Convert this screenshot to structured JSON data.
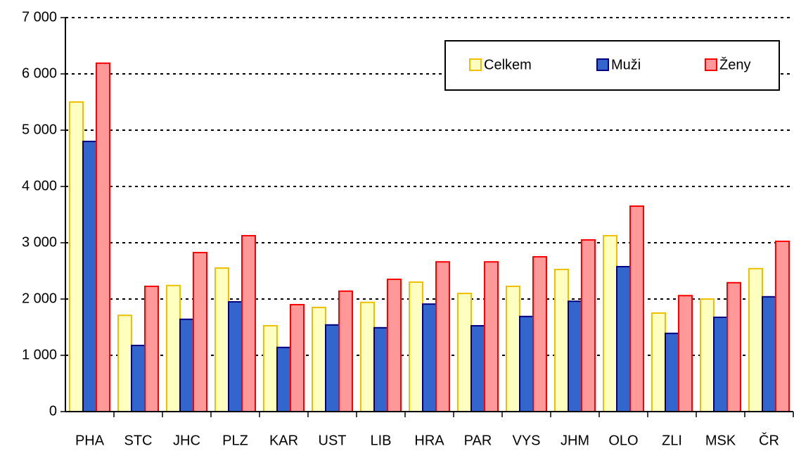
{
  "chart_data": {
    "type": "bar",
    "categories": [
      "PHA",
      "STC",
      "JHC",
      "PLZ",
      "KAR",
      "UST",
      "LIB",
      "HRA",
      "PAR",
      "VYS",
      "JHM",
      "OLO",
      "ZLI",
      "MSK",
      "ČR"
    ],
    "series": [
      {
        "name": "Celkem",
        "color": "#ffffc0",
        "edgecolor": "#f0c000",
        "values": [
          5500,
          1710,
          2240,
          2550,
          1525,
          1850,
          1940,
          2300,
          2100,
          2225,
          2525,
          3125,
          1750,
          2000,
          2540
        ]
      },
      {
        "name": "Muži",
        "color": "#3366cc",
        "edgecolor": "#000080",
        "values": [
          4800,
          1175,
          1640,
          1950,
          1140,
          1540,
          1490,
          1910,
          1525,
          1690,
          1960,
          2575,
          1390,
          1675,
          2040
        ]
      },
      {
        "name": "Ženy",
        "color": "#ff9999",
        "edgecolor": "#ff0000",
        "values": [
          6190,
          2225,
          2825,
          3125,
          1900,
          2140,
          2350,
          2660,
          2660,
          2750,
          3050,
          3650,
          2060,
          2290,
          3025
        ]
      }
    ],
    "ylim": [
      0,
      7000
    ],
    "yticks": [
      0,
      {
        "value": 1000,
        "label": "1 000"
      },
      {
        "value": 2000,
        "label": "2 000"
      },
      {
        "value": 3000,
        "label": "3 000"
      },
      {
        "value": 4000,
        "label": "4 000"
      },
      {
        "value": 5000,
        "label": "5 000"
      },
      {
        "value": 6000,
        "label": "6 000"
      },
      {
        "value": 7000,
        "label": "7 000"
      }
    ],
    "grid": true,
    "legend": "upper right"
  }
}
